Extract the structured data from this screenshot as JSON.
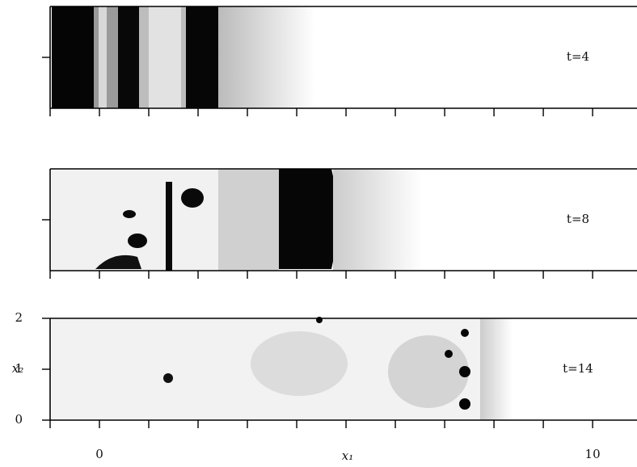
{
  "chart_data": [
    {
      "type": "image",
      "annotation": "t=4",
      "xlim": [
        -1,
        10.9
      ],
      "ylim": [
        0,
        2
      ],
      "xminorticks": [
        -1,
        0,
        1,
        2,
        3,
        4,
        5,
        6,
        7,
        8,
        9,
        10
      ],
      "yminorticks": [
        1
      ]
    },
    {
      "type": "image",
      "annotation": "t=8",
      "xlim": [
        -1,
        10.9
      ],
      "ylim": [
        0,
        2
      ],
      "xminorticks": [
        -1,
        0,
        1,
        2,
        3,
        4,
        5,
        6,
        7,
        8,
        9,
        10
      ],
      "yminorticks": [
        1
      ]
    },
    {
      "type": "image",
      "annotation": "t=14",
      "xlim": [
        -1,
        10.9
      ],
      "ylim": [
        0,
        2
      ],
      "xticks": [
        0,
        10
      ],
      "xminorticks": [
        -1,
        1,
        2,
        3,
        4,
        5,
        6,
        7,
        8,
        9
      ],
      "yticks": [
        0,
        1,
        2
      ],
      "xlabel": "x₁",
      "ylabel": "x₂"
    }
  ]
}
